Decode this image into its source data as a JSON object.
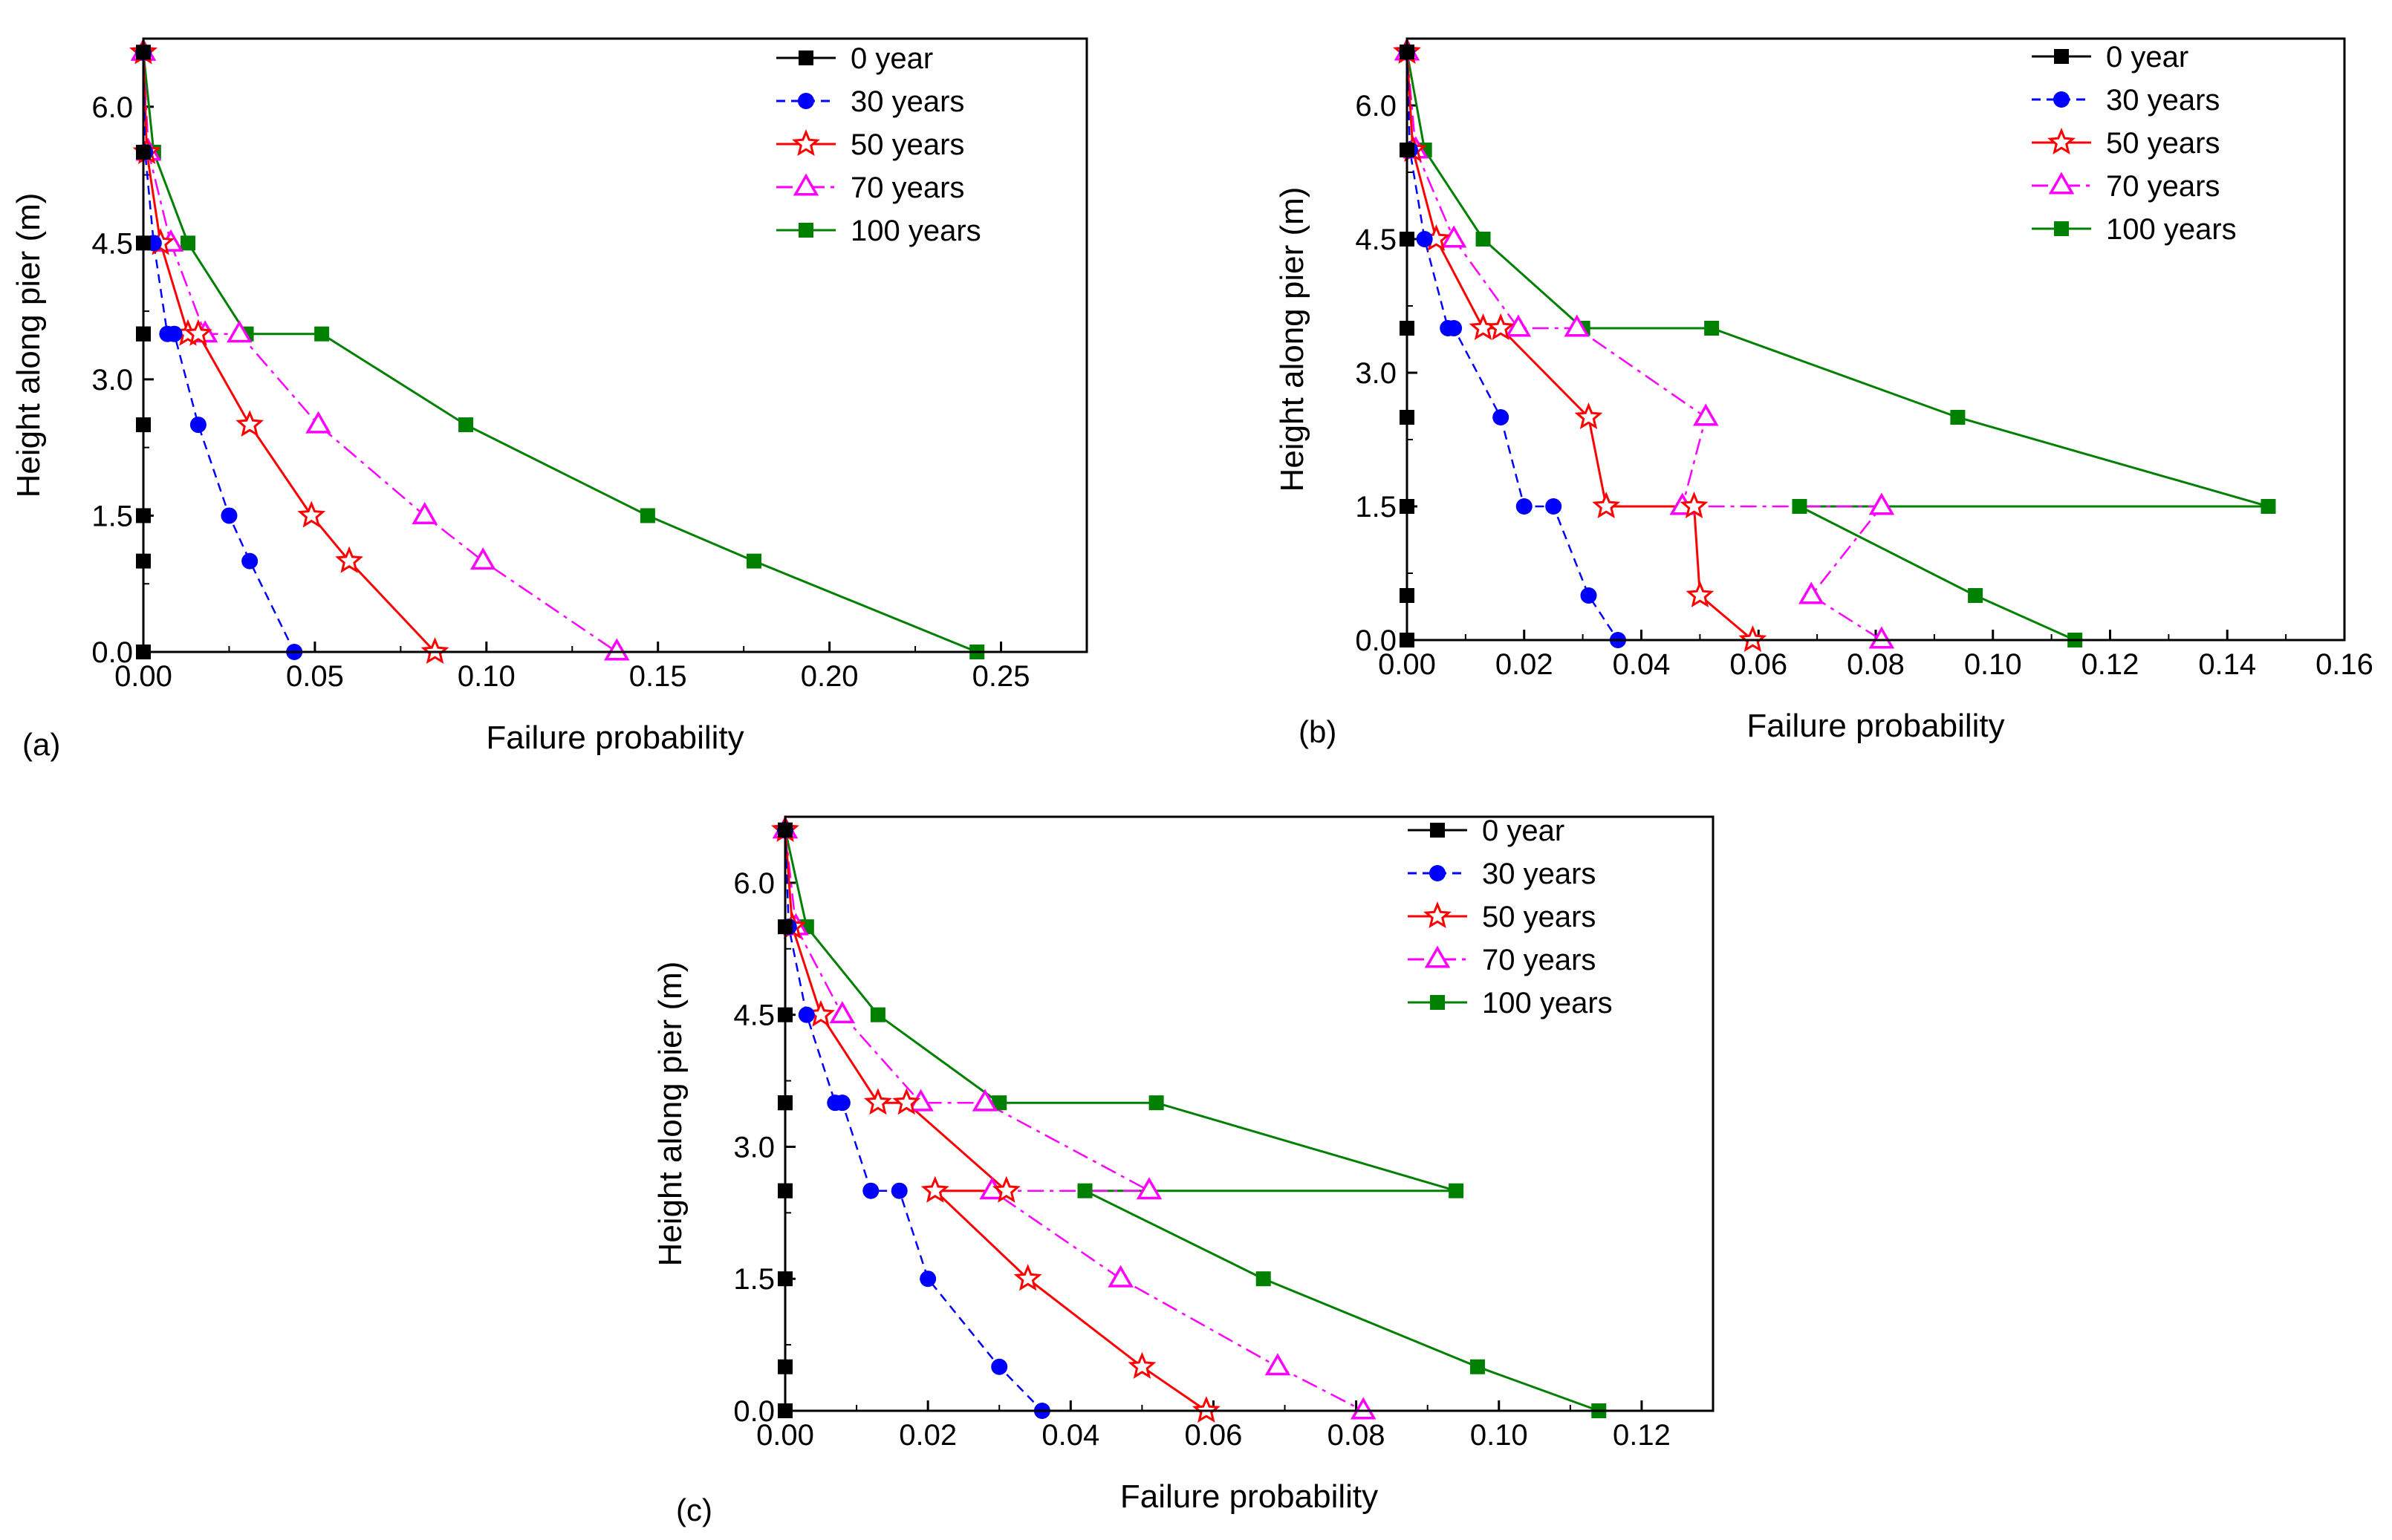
{
  "chart_data": [
    {
      "type": "line",
      "panel_label": "(a)",
      "xlabel": "Failure probability",
      "ylabel": "Height along pier (m)",
      "xlim": [
        0,
        0.275
      ],
      "ylim": [
        0,
        6.75
      ],
      "xticks": [
        0.0,
        0.05,
        0.1,
        0.15,
        0.2,
        0.25
      ],
      "xtick_labels": [
        "0.00",
        "0.05",
        "0.10",
        "0.15",
        "0.20",
        "0.25"
      ],
      "yticks": [
        0.0,
        1.5,
        3.0,
        4.5,
        6.0
      ],
      "ytick_labels": [
        "0.0",
        "1.5",
        "3.0",
        "4.5",
        "6.0"
      ],
      "legend_position": "top-right",
      "series": [
        {
          "name": "0 year",
          "color": "#000000",
          "marker": "square",
          "dash": "solid",
          "x": [
            0,
            0,
            0,
            0,
            0,
            0,
            0,
            0,
            0
          ],
          "y": [
            6.6,
            5.5,
            4.5,
            3.5,
            3.5,
            2.5,
            1.5,
            1.0,
            0.0
          ]
        },
        {
          "name": "30 years",
          "color": "#0000ff",
          "marker": "circle",
          "dash": "dashed",
          "x": [
            0.0,
            0.0005,
            0.003,
            0.007,
            0.009,
            0.016,
            0.025,
            0.031,
            0.044
          ],
          "y": [
            6.6,
            5.5,
            4.5,
            3.5,
            3.5,
            2.5,
            1.5,
            1.0,
            0.0
          ]
        },
        {
          "name": "50 years",
          "color": "#ff0000",
          "marker": "star",
          "dash": "solid",
          "x": [
            0.0,
            0.001,
            0.005,
            0.013,
            0.016,
            0.031,
            0.049,
            0.06,
            0.085
          ],
          "y": [
            6.6,
            5.5,
            4.5,
            3.5,
            3.5,
            2.5,
            1.5,
            1.0,
            0.0
          ]
        },
        {
          "name": "70 years",
          "color": "#ff00ff",
          "marker": "triangle",
          "dash": "dashdot",
          "x": [
            0.0,
            0.0015,
            0.008,
            0.018,
            0.028,
            0.051,
            0.082,
            0.099,
            0.138
          ],
          "y": [
            6.6,
            5.5,
            4.5,
            3.5,
            3.5,
            2.5,
            1.5,
            1.0,
            0.0
          ]
        },
        {
          "name": "100 years",
          "color": "#008000",
          "marker": "square",
          "dash": "solid",
          "x": [
            0.0,
            0.003,
            0.013,
            0.03,
            0.052,
            0.094,
            0.147,
            0.178,
            0.243
          ],
          "y": [
            6.6,
            5.5,
            4.5,
            3.5,
            3.5,
            2.5,
            1.5,
            1.0,
            0.0
          ]
        }
      ]
    },
    {
      "type": "line",
      "panel_label": "(b)",
      "xlabel": "Failure probability",
      "ylabel": "Height along pier (m)",
      "xlim": [
        0,
        0.16
      ],
      "ylim": [
        0,
        6.75
      ],
      "xticks": [
        0.0,
        0.02,
        0.04,
        0.06,
        0.08,
        0.1,
        0.12,
        0.14,
        0.16
      ],
      "xtick_labels": [
        "0.00",
        "0.02",
        "0.04",
        "0.06",
        "0.08",
        "0.10",
        "0.12",
        "0.14",
        "0.16"
      ],
      "yticks": [
        0.0,
        1.5,
        3.0,
        4.5,
        6.0
      ],
      "ytick_labels": [
        "0.0",
        "1.5",
        "3.0",
        "4.5",
        "6.0"
      ],
      "legend_position": "top-right",
      "series": [
        {
          "name": "0 year",
          "color": "#000000",
          "marker": "square",
          "dash": "solid",
          "x": [
            0,
            0,
            0,
            0,
            0,
            0,
            0,
            0,
            0,
            0
          ],
          "y": [
            6.6,
            5.5,
            4.5,
            3.5,
            3.5,
            2.5,
            1.5,
            1.5,
            0.5,
            0.0
          ]
        },
        {
          "name": "30 years",
          "color": "#0000ff",
          "marker": "circle",
          "dash": "dashed",
          "x": [
            0.0,
            0.0005,
            0.003,
            0.007,
            0.008,
            0.016,
            0.02,
            0.025,
            0.031,
            0.036
          ],
          "y": [
            6.6,
            5.5,
            4.5,
            3.5,
            3.5,
            2.5,
            1.5,
            1.5,
            0.5,
            0.0
          ]
        },
        {
          "name": "50 years",
          "color": "#ff0000",
          "marker": "star",
          "dash": "solid",
          "x": [
            0.0,
            0.001,
            0.005,
            0.013,
            0.016,
            0.031,
            0.034,
            0.049,
            0.05,
            0.059
          ],
          "y": [
            6.6,
            5.5,
            4.5,
            3.5,
            3.5,
            2.5,
            1.5,
            1.5,
            0.5,
            0.0
          ]
        },
        {
          "name": "70 years",
          "color": "#ff00ff",
          "marker": "triangle",
          "dash": "dashdot",
          "x": [
            0.0,
            0.0015,
            0.008,
            0.019,
            0.029,
            0.051,
            0.047,
            0.081,
            0.069,
            0.081
          ],
          "y": [
            6.6,
            5.5,
            4.5,
            3.5,
            3.5,
            2.5,
            1.5,
            1.5,
            0.5,
            0.0
          ]
        },
        {
          "name": "100 years",
          "color": "#008000",
          "marker": "square",
          "dash": "solid",
          "x": [
            0.0,
            0.003,
            0.013,
            0.03,
            0.052,
            0.094,
            0.147,
            0.067,
            0.097,
            0.114
          ],
          "y": [
            6.6,
            5.5,
            4.5,
            3.5,
            3.5,
            2.5,
            1.5,
            1.5,
            0.5,
            0.0
          ]
        }
      ]
    },
    {
      "type": "line",
      "panel_label": "(c)",
      "xlabel": "Failure probability",
      "ylabel": "Height along pier (m)",
      "xlim": [
        0,
        0.13
      ],
      "ylim": [
        0,
        6.75
      ],
      "xticks": [
        0.0,
        0.02,
        0.04,
        0.06,
        0.08,
        0.1,
        0.12
      ],
      "xtick_labels": [
        "0.00",
        "0.02",
        "0.04",
        "0.06",
        "0.08",
        "0.10",
        "0.12"
      ],
      "yticks": [
        0.0,
        1.5,
        3.0,
        4.5,
        6.0
      ],
      "ytick_labels": [
        "0.0",
        "1.5",
        "3.0",
        "4.5",
        "6.0"
      ],
      "legend_position": "top-right",
      "series": [
        {
          "name": "0 year",
          "color": "#000000",
          "marker": "square",
          "dash": "solid",
          "x": [
            0,
            0,
            0,
            0,
            0,
            0,
            0,
            0,
            0,
            0
          ],
          "y": [
            6.6,
            5.5,
            4.5,
            3.5,
            3.5,
            2.5,
            2.5,
            1.5,
            0.5,
            0.0
          ]
        },
        {
          "name": "30 years",
          "color": "#0000ff",
          "marker": "circle",
          "dash": "dashed",
          "x": [
            0.0,
            0.0005,
            0.003,
            0.007,
            0.008,
            0.012,
            0.016,
            0.02,
            0.03,
            0.036
          ],
          "y": [
            6.6,
            5.5,
            4.5,
            3.5,
            3.5,
            2.5,
            2.5,
            1.5,
            0.5,
            0.0
          ]
        },
        {
          "name": "50 years",
          "color": "#ff0000",
          "marker": "star",
          "dash": "solid",
          "x": [
            0.0,
            0.001,
            0.005,
            0.013,
            0.017,
            0.031,
            0.021,
            0.034,
            0.05,
            0.059
          ],
          "y": [
            6.6,
            5.5,
            4.5,
            3.5,
            3.5,
            2.5,
            2.5,
            1.5,
            0.5,
            0.0
          ]
        },
        {
          "name": "70 years",
          "color": "#ff00ff",
          "marker": "triangle",
          "dash": "dashdot",
          "x": [
            0.0,
            0.0015,
            0.008,
            0.019,
            0.028,
            0.051,
            0.029,
            0.047,
            0.069,
            0.081
          ],
          "y": [
            6.6,
            5.5,
            4.5,
            3.5,
            3.5,
            2.5,
            2.5,
            1.5,
            0.5,
            0.0
          ]
        },
        {
          "name": "100 years",
          "color": "#008000",
          "marker": "square",
          "dash": "solid",
          "x": [
            0.0,
            0.003,
            0.013,
            0.03,
            0.052,
            0.094,
            0.042,
            0.067,
            0.097,
            0.114
          ],
          "y": [
            6.6,
            5.5,
            4.5,
            3.5,
            3.5,
            2.5,
            2.5,
            1.5,
            0.5,
            0.0
          ]
        }
      ]
    }
  ]
}
